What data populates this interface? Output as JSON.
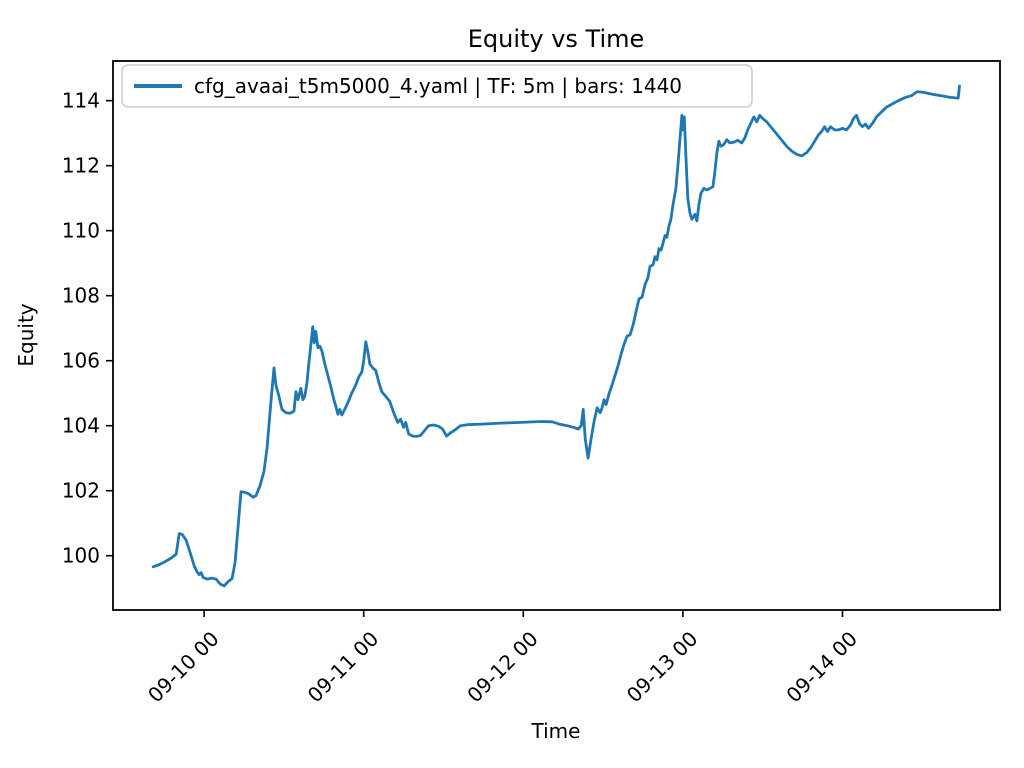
{
  "figure": {
    "title": "Equity vs Time",
    "xlabel": "Time",
    "ylabel": "Equity",
    "background": "#ffffff",
    "text_color": "#000000",
    "spine_color": "#000000"
  },
  "legend": {
    "label": "cfg_avaai_t5m5000_4.yaml | TF: 5m | bars: 1440",
    "line_color": "#1f77b4",
    "frame_color": "#cccccc",
    "position": "upper left"
  },
  "chart_data": {
    "type": "line",
    "title": "Equity vs Time",
    "xlabel": "Time",
    "ylabel": "Equity",
    "grid": false,
    "legend_position": "upper left",
    "x_unit": "days relative to tick 09-10 00",
    "xlim": [
      -0.571,
      4.987
    ],
    "ylim": [
      98.33,
      115.22
    ],
    "xticks": [
      {
        "pos": 0,
        "label": "09-10 00"
      },
      {
        "pos": 1,
        "label": "09-11 00"
      },
      {
        "pos": 2,
        "label": "09-12 00"
      },
      {
        "pos": 3,
        "label": "09-13 00"
      },
      {
        "pos": 4,
        "label": "09-14 00"
      }
    ],
    "xtick_rotation": 45,
    "yticks": [
      100,
      102,
      104,
      106,
      108,
      110,
      112,
      114
    ],
    "series": [
      {
        "name": "cfg_avaai_t5m5000_4.yaml | TF: 5m | bars: 1440",
        "color": "#1f77b4",
        "line_width": 2.8,
        "points": [
          [
            -0.319,
            99.66
          ],
          [
            -0.28,
            99.73
          ],
          [
            -0.244,
            99.82
          ],
          [
            -0.206,
            99.93
          ],
          [
            -0.175,
            100.05
          ],
          [
            -0.156,
            100.68
          ],
          [
            -0.138,
            100.66
          ],
          [
            -0.113,
            100.48
          ],
          [
            -0.088,
            100.1
          ],
          [
            -0.063,
            99.7
          ],
          [
            -0.044,
            99.5
          ],
          [
            -0.031,
            99.42
          ],
          [
            -0.019,
            99.48
          ],
          [
            -0.006,
            99.33
          ],
          [
            0.019,
            99.28
          ],
          [
            0.05,
            99.31
          ],
          [
            0.075,
            99.28
          ],
          [
            0.1,
            99.13
          ],
          [
            0.125,
            99.07
          ],
          [
            0.15,
            99.2
          ],
          [
            0.175,
            99.3
          ],
          [
            0.194,
            99.8
          ],
          [
            0.213,
            100.9
          ],
          [
            0.231,
            101.97
          ],
          [
            0.256,
            101.95
          ],
          [
            0.281,
            101.9
          ],
          [
            0.306,
            101.8
          ],
          [
            0.325,
            101.85
          ],
          [
            0.35,
            102.15
          ],
          [
            0.375,
            102.6
          ],
          [
            0.394,
            103.3
          ],
          [
            0.413,
            104.4
          ],
          [
            0.425,
            105.1
          ],
          [
            0.438,
            105.78
          ],
          [
            0.45,
            105.25
          ],
          [
            0.469,
            104.9
          ],
          [
            0.488,
            104.5
          ],
          [
            0.513,
            104.4
          ],
          [
            0.538,
            104.38
          ],
          [
            0.563,
            104.45
          ],
          [
            0.575,
            105.05
          ],
          [
            0.588,
            104.8
          ],
          [
            0.606,
            105.15
          ],
          [
            0.619,
            104.8
          ],
          [
            0.631,
            104.9
          ],
          [
            0.644,
            105.3
          ],
          [
            0.656,
            105.9
          ],
          [
            0.669,
            106.5
          ],
          [
            0.681,
            107.05
          ],
          [
            0.69,
            106.55
          ],
          [
            0.7,
            106.9
          ],
          [
            0.713,
            106.4
          ],
          [
            0.725,
            106.45
          ],
          [
            0.738,
            106.3
          ],
          [
            0.756,
            105.9
          ],
          [
            0.775,
            105.55
          ],
          [
            0.794,
            105.2
          ],
          [
            0.813,
            104.8
          ],
          [
            0.825,
            104.6
          ],
          [
            0.838,
            104.35
          ],
          [
            0.85,
            104.5
          ],
          [
            0.863,
            104.33
          ],
          [
            0.881,
            104.5
          ],
          [
            0.9,
            104.7
          ],
          [
            0.925,
            105.0
          ],
          [
            0.95,
            105.25
          ],
          [
            0.969,
            105.5
          ],
          [
            0.988,
            105.65
          ],
          [
            1.0,
            106.0
          ],
          [
            1.013,
            106.58
          ],
          [
            1.025,
            106.3
          ],
          [
            1.038,
            105.9
          ],
          [
            1.056,
            105.78
          ],
          [
            1.075,
            105.7
          ],
          [
            1.094,
            105.35
          ],
          [
            1.113,
            105.05
          ],
          [
            1.138,
            104.9
          ],
          [
            1.163,
            104.75
          ],
          [
            1.188,
            104.4
          ],
          [
            1.213,
            104.1
          ],
          [
            1.231,
            104.2
          ],
          [
            1.25,
            103.95
          ],
          [
            1.263,
            104.1
          ],
          [
            1.281,
            103.75
          ],
          [
            1.306,
            103.68
          ],
          [
            1.331,
            103.67
          ],
          [
            1.356,
            103.7
          ],
          [
            1.381,
            103.85
          ],
          [
            1.406,
            104.0
          ],
          [
            1.438,
            104.02
          ],
          [
            1.469,
            103.98
          ],
          [
            1.494,
            103.9
          ],
          [
            1.519,
            103.68
          ],
          [
            1.544,
            103.78
          ],
          [
            1.575,
            103.88
          ],
          [
            1.606,
            104.0
          ],
          [
            1.65,
            104.03
          ],
          [
            1.738,
            104.05
          ],
          [
            1.863,
            104.08
          ],
          [
            1.988,
            104.1
          ],
          [
            2.113,
            104.13
          ],
          [
            2.181,
            104.12
          ],
          [
            2.225,
            104.05
          ],
          [
            2.275,
            104.0
          ],
          [
            2.313,
            103.95
          ],
          [
            2.344,
            103.9
          ],
          [
            2.363,
            104.0
          ],
          [
            2.375,
            104.5
          ],
          [
            2.388,
            103.6
          ],
          [
            2.406,
            103.0
          ],
          [
            2.425,
            103.6
          ],
          [
            2.444,
            104.15
          ],
          [
            2.463,
            104.55
          ],
          [
            2.481,
            104.4
          ],
          [
            2.494,
            104.55
          ],
          [
            2.506,
            104.8
          ],
          [
            2.519,
            104.65
          ],
          [
            2.538,
            105.0
          ],
          [
            2.556,
            105.25
          ],
          [
            2.575,
            105.55
          ],
          [
            2.594,
            105.85
          ],
          [
            2.613,
            106.2
          ],
          [
            2.631,
            106.5
          ],
          [
            2.65,
            106.75
          ],
          [
            2.669,
            106.8
          ],
          [
            2.688,
            107.1
          ],
          [
            2.706,
            107.5
          ],
          [
            2.725,
            107.9
          ],
          [
            2.744,
            107.95
          ],
          [
            2.763,
            108.35
          ],
          [
            2.781,
            108.55
          ],
          [
            2.794,
            108.9
          ],
          [
            2.813,
            108.95
          ],
          [
            2.825,
            109.2
          ],
          [
            2.838,
            109.1
          ],
          [
            2.85,
            109.45
          ],
          [
            2.863,
            109.4
          ],
          [
            2.875,
            109.6
          ],
          [
            2.888,
            109.85
          ],
          [
            2.9,
            109.8
          ],
          [
            2.913,
            110.15
          ],
          [
            2.925,
            110.35
          ],
          [
            2.938,
            110.8
          ],
          [
            2.956,
            111.3
          ],
          [
            2.969,
            112.0
          ],
          [
            2.981,
            112.8
          ],
          [
            2.994,
            113.55
          ],
          [
            3.0,
            113.1
          ],
          [
            3.009,
            113.5
          ],
          [
            3.019,
            112.3
          ],
          [
            3.031,
            111.0
          ],
          [
            3.044,
            110.55
          ],
          [
            3.056,
            110.35
          ],
          [
            3.075,
            110.5
          ],
          [
            3.088,
            110.3
          ],
          [
            3.1,
            110.8
          ],
          [
            3.113,
            111.15
          ],
          [
            3.131,
            111.3
          ],
          [
            3.15,
            111.25
          ],
          [
            3.169,
            111.3
          ],
          [
            3.188,
            111.35
          ],
          [
            3.2,
            111.8
          ],
          [
            3.213,
            112.4
          ],
          [
            3.225,
            112.75
          ],
          [
            3.238,
            112.6
          ],
          [
            3.256,
            112.65
          ],
          [
            3.275,
            112.8
          ],
          [
            3.294,
            112.7
          ],
          [
            3.319,
            112.72
          ],
          [
            3.344,
            112.78
          ],
          [
            3.369,
            112.7
          ],
          [
            3.388,
            112.85
          ],
          [
            3.406,
            113.1
          ],
          [
            3.425,
            113.3
          ],
          [
            3.444,
            113.5
          ],
          [
            3.463,
            113.35
          ],
          [
            3.481,
            113.55
          ],
          [
            3.5,
            113.45
          ],
          [
            3.525,
            113.35
          ],
          [
            3.55,
            113.2
          ],
          [
            3.575,
            113.05
          ],
          [
            3.6,
            112.9
          ],
          [
            3.625,
            112.75
          ],
          [
            3.65,
            112.6
          ],
          [
            3.681,
            112.45
          ],
          [
            3.713,
            112.35
          ],
          [
            3.744,
            112.3
          ],
          [
            3.775,
            112.4
          ],
          [
            3.8,
            112.55
          ],
          [
            3.825,
            112.75
          ],
          [
            3.85,
            112.95
          ],
          [
            3.869,
            113.05
          ],
          [
            3.888,
            113.2
          ],
          [
            3.906,
            113.05
          ],
          [
            3.925,
            113.2
          ],
          [
            3.95,
            113.1
          ],
          [
            3.975,
            113.1
          ],
          [
            4.0,
            113.15
          ],
          [
            4.025,
            113.1
          ],
          [
            4.05,
            113.25
          ],
          [
            4.069,
            113.45
          ],
          [
            4.088,
            113.55
          ],
          [
            4.106,
            113.3
          ],
          [
            4.125,
            113.2
          ],
          [
            4.144,
            113.28
          ],
          [
            4.163,
            113.15
          ],
          [
            4.188,
            113.3
          ],
          [
            4.213,
            113.5
          ],
          [
            4.244,
            113.65
          ],
          [
            4.275,
            113.8
          ],
          [
            4.313,
            113.9
          ],
          [
            4.35,
            114.0
          ],
          [
            4.394,
            114.1
          ],
          [
            4.431,
            114.15
          ],
          [
            4.469,
            114.28
          ],
          [
            4.513,
            114.25
          ],
          [
            4.563,
            114.2
          ],
          [
            4.619,
            114.15
          ],
          [
            4.675,
            114.1
          ],
          [
            4.725,
            114.08
          ],
          [
            4.733,
            114.45
          ]
        ]
      }
    ]
  }
}
